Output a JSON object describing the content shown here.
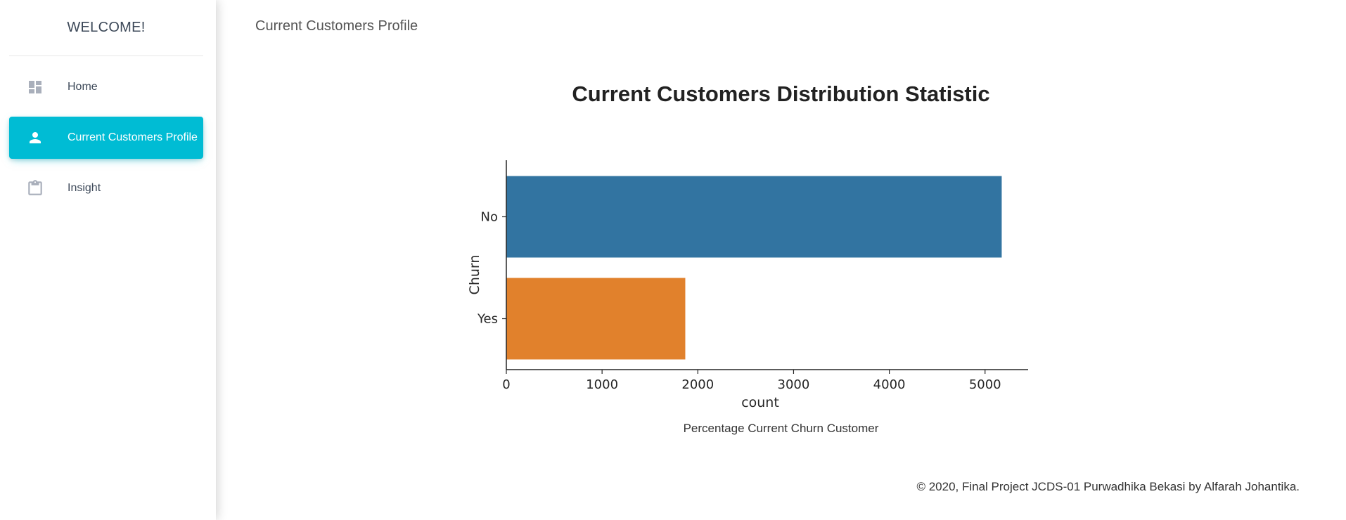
{
  "sidebar": {
    "brand": "WELCOME!",
    "items": [
      {
        "label": "Home",
        "icon": "dashboard-icon",
        "active": false
      },
      {
        "label": "Current Customers Profile",
        "icon": "person-icon",
        "active": true
      },
      {
        "label": "Insight",
        "icon": "clipboard-icon",
        "active": false
      }
    ]
  },
  "header": {
    "title": "Current Customers Profile"
  },
  "main": {
    "chart_title": "Current Customers Distribution Statistic",
    "caption": "Percentage Current Churn Customer"
  },
  "footer": {
    "text": "© 2020, Final Project JCDS-01 Purwadhika Bekasi by Alfarah Johantika."
  },
  "colors": {
    "accent": "#00bcd4",
    "bar_no": "#3274a1",
    "bar_yes": "#e1812c"
  },
  "chart_data": {
    "type": "bar",
    "orientation": "horizontal",
    "categories": [
      "No",
      "Yes"
    ],
    "values": [
      5174,
      1869
    ],
    "colors": [
      "#3274a1",
      "#e1812c"
    ],
    "xlabel": "count",
    "ylabel": "Churn",
    "xlim": [
      0,
      5450
    ],
    "xticks": [
      0,
      1000,
      2000,
      3000,
      4000,
      5000
    ],
    "grid": false
  }
}
